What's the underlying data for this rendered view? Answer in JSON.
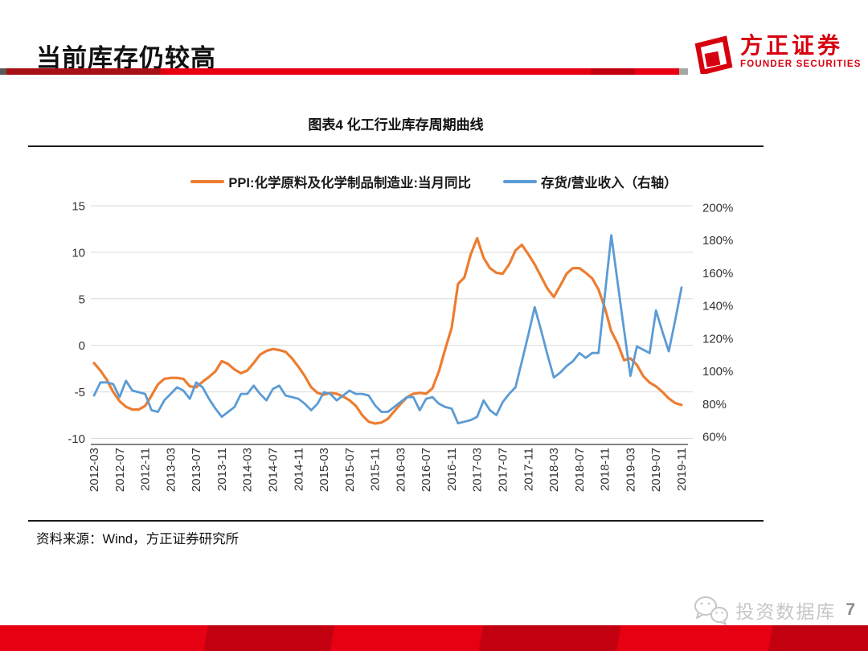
{
  "theme": {
    "brand_red": "#E60012",
    "dark_red": "#C30010",
    "deep_red": "#A81018",
    "logo_red": "#D7000F",
    "tip_gray": "#A6A6A6",
    "watermark_gray": "#C6C6C6",
    "page_gray": "#8A8A8A"
  },
  "header": {
    "title": "当前库存仍较高"
  },
  "logo": {
    "name_cn": "方正证券",
    "name_en": "FOUNDER SECURITIES"
  },
  "figure": {
    "title": "图表4 化工行业库存周期曲线",
    "source": "资料来源：Wind，方正证券研究所"
  },
  "watermark": {
    "label": "投资数据库",
    "page": "7"
  },
  "chart_data": {
    "type": "line",
    "title": "图表4 化工行业库存周期曲线",
    "grid": true,
    "legend_position": "top",
    "x_frequency": "monthly",
    "x_start": "2012-03",
    "x_end": "2019-11",
    "x_tick_labels": [
      "2012-03",
      "2012-07",
      "2012-11",
      "2013-03",
      "2013-07",
      "2013-11",
      "2014-03",
      "2014-07",
      "2014-11",
      "2015-03",
      "2015-07",
      "2015-11",
      "2016-03",
      "2016-07",
      "2016-11",
      "2017-03",
      "2017-07",
      "2017-11",
      "2018-03",
      "2018-07",
      "2018-11",
      "2019-03",
      "2019-07",
      "2019-11"
    ],
    "left_axis": {
      "range": [
        -10,
        15
      ],
      "ticks": [
        15,
        10,
        5,
        0,
        -5,
        -10
      ]
    },
    "right_axis": {
      "range": [
        60,
        200
      ],
      "ticks": [
        "200%",
        "180%",
        "160%",
        "140%",
        "120%",
        "100%",
        "80%",
        "60%"
      ]
    },
    "series": [
      {
        "name": "PPI:化学原料及化学制品制造业:当月同比",
        "axis": "left",
        "color": "#ED7D31",
        "values": [
          -1.9,
          -2.7,
          -3.7,
          -5,
          -6,
          -6.6,
          -6.9,
          -6.9,
          -6.5,
          -5.4,
          -4.2,
          -3.6,
          -3.5,
          -3.5,
          -3.6,
          -4.4,
          -4.5,
          -3.9,
          -3.4,
          -2.8,
          -1.7,
          -2,
          -2.6,
          -3,
          -2.7,
          -1.9,
          -1,
          -0.6,
          -0.4,
          -0.5,
          -0.7,
          -1.4,
          -2.3,
          -3.3,
          -4.5,
          -5.1,
          -5.3,
          -5.1,
          -5.2,
          -5.5,
          -5.9,
          -6.5,
          -7.5,
          -8.2,
          -8.4,
          -8.3,
          -7.9,
          -7.1,
          -6.3,
          -5.6,
          -5.2,
          -5.1,
          -5.2,
          -4.6,
          -2.8,
          -0.4,
          1.9,
          6.6,
          7.3,
          9.8,
          11.5,
          9.4,
          8.3,
          7.8,
          7.7,
          8.7,
          10.2,
          10.8,
          9.8,
          8.7,
          7.4,
          6.1,
          5.2,
          6.4,
          7.7,
          8.3,
          8.3,
          7.8,
          7.2,
          6,
          4,
          1.5,
          0.2,
          -1.6,
          -1.4,
          -2.1,
          -3.3,
          -4,
          -4.4,
          -5,
          -5.7,
          -6.2,
          -6.4
        ]
      },
      {
        "name": "存货/营业收入（右轴）",
        "axis": "right",
        "color": "#5B9BD5",
        "unit": "%",
        "values": [
          85,
          93,
          93,
          92,
          84,
          94,
          88,
          87,
          86,
          76,
          75,
          82,
          86,
          90,
          88,
          83,
          93,
          90,
          83,
          77,
          72,
          75,
          78,
          86,
          86,
          91,
          86,
          82,
          89,
          91,
          85,
          84,
          83,
          80,
          76,
          80,
          87,
          86,
          82,
          85,
          88,
          86,
          86,
          85,
          79,
          75,
          75,
          78,
          81,
          84,
          84,
          76,
          83,
          84,
          80,
          78,
          77,
          68,
          69,
          70,
          72,
          82,
          76,
          73,
          81,
          86,
          90,
          106,
          122,
          139,
          125,
          110,
          96,
          99,
          103,
          106,
          111,
          108,
          111,
          111,
          147,
          183,
          154,
          125,
          97,
          115,
          113,
          111,
          137,
          124,
          112,
          131,
          151
        ]
      }
    ]
  }
}
